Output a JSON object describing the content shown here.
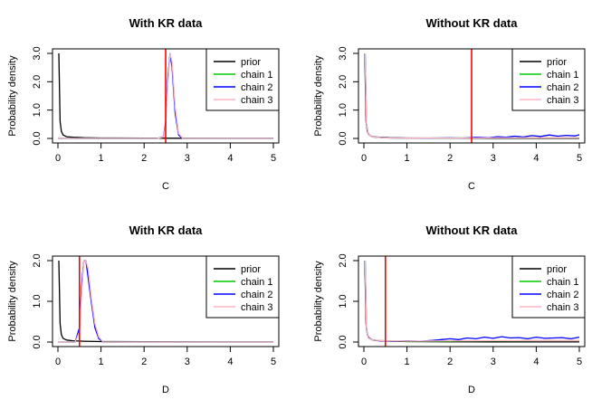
{
  "chart_data": [
    {
      "type": "line",
      "title": "With KR data",
      "xlabel": "C",
      "ylabel": "Probability density",
      "xlim": [
        0,
        5
      ],
      "ylim": [
        0,
        3.0
      ],
      "xticks": [
        "0",
        "1",
        "2",
        "3",
        "4",
        "5"
      ],
      "yticks": [
        "0.0",
        "1.0",
        "2.0",
        "3.0"
      ],
      "ytick_values": [
        0,
        1,
        2,
        3
      ],
      "legend": [
        "prior",
        "chain 1",
        "chain 2",
        "chain 3"
      ],
      "legend_position": "top-right",
      "reference_line_x": 2.5,
      "series": [
        {
          "name": "prior",
          "color": "#000000",
          "x": [
            0.02,
            0.05,
            0.08,
            0.12,
            0.2,
            0.35,
            0.6,
            1.0,
            2.0,
            3.0,
            4.0,
            5.0
          ],
          "y": [
            3.0,
            0.6,
            0.25,
            0.12,
            0.06,
            0.04,
            0.025,
            0.015,
            0.008,
            0.005,
            0.004,
            0.003
          ]
        },
        {
          "name": "chain 1",
          "color": "#00cc00",
          "x": [
            0,
            2.3,
            2.45,
            2.5,
            2.55,
            2.6,
            2.65,
            2.72,
            2.8,
            2.9,
            5
          ],
          "y": [
            0,
            0,
            0.05,
            0.5,
            2.0,
            3.0,
            2.6,
            1.0,
            0.15,
            0,
            0
          ]
        },
        {
          "name": "chain 2",
          "color": "#0000ff",
          "x": [
            0,
            2.3,
            2.45,
            2.5,
            2.55,
            2.6,
            2.65,
            2.72,
            2.8,
            2.9,
            5
          ],
          "y": [
            0,
            0,
            0.06,
            0.55,
            2.1,
            3.0,
            2.5,
            0.9,
            0.12,
            0,
            0
          ]
        },
        {
          "name": "chain 3",
          "color": "#ffb6c1",
          "x": [
            0,
            2.3,
            2.45,
            2.5,
            2.55,
            2.6,
            2.65,
            2.72,
            2.8,
            2.9,
            5
          ],
          "y": [
            0,
            0,
            0.05,
            0.45,
            1.9,
            3.0,
            2.7,
            1.1,
            0.18,
            0,
            0
          ]
        }
      ]
    },
    {
      "type": "line",
      "title": "Without KR data",
      "xlabel": "C",
      "ylabel": "Probability density",
      "xlim": [
        0,
        5
      ],
      "ylim": [
        0,
        3.0
      ],
      "xticks": [
        "0",
        "1",
        "2",
        "3",
        "4",
        "5"
      ],
      "yticks": [
        "0.0",
        "1.0",
        "2.0",
        "3.0"
      ],
      "ytick_values": [
        0,
        1,
        2,
        3
      ],
      "legend": [
        "prior",
        "chain 1",
        "chain 2",
        "chain 3"
      ],
      "legend_position": "top-right",
      "reference_line_x": 2.5,
      "series": [
        {
          "name": "prior",
          "color": "#000000",
          "x": [
            0.02,
            0.05,
            0.08,
            0.12,
            0.2,
            0.35,
            0.6,
            1.0,
            2.0,
            3.0,
            4.0,
            5.0
          ],
          "y": [
            3.0,
            0.6,
            0.25,
            0.12,
            0.06,
            0.04,
            0.025,
            0.015,
            0.008,
            0.005,
            0.004,
            0.003
          ]
        },
        {
          "name": "chain 1",
          "color": "#00cc00",
          "x": [
            0.03,
            0.06,
            0.1,
            0.2,
            0.5,
            1.0,
            1.5,
            2.0,
            2.5,
            3.0,
            3.5,
            4.0,
            4.5,
            5.0
          ],
          "y": [
            3.0,
            0.5,
            0.15,
            0.05,
            0.02,
            0.01,
            0.01,
            0.015,
            0.02,
            0.02,
            0.02,
            0.03,
            0.03,
            0.03
          ]
        },
        {
          "name": "chain 2",
          "color": "#0000ff",
          "x": [
            0.03,
            0.06,
            0.1,
            0.2,
            0.5,
            1.0,
            1.5,
            2.0,
            2.3,
            2.6,
            2.9,
            3.1,
            3.3,
            3.5,
            3.7,
            3.9,
            4.1,
            4.3,
            4.5,
            4.7,
            4.9,
            5.0
          ],
          "y": [
            3.0,
            0.5,
            0.15,
            0.05,
            0.02,
            0.01,
            0.01,
            0.02,
            0.01,
            0.04,
            0.03,
            0.06,
            0.04,
            0.08,
            0.05,
            0.1,
            0.07,
            0.12,
            0.08,
            0.11,
            0.09,
            0.13
          ]
        },
        {
          "name": "chain 3",
          "color": "#ffb6c1",
          "x": [
            0.03,
            0.06,
            0.1,
            0.2,
            0.5,
            1.0,
            1.5,
            2.0,
            2.5,
            3.0,
            3.5,
            4.0,
            4.5,
            5.0
          ],
          "y": [
            3.0,
            0.5,
            0.15,
            0.05,
            0.02,
            0.01,
            0.012,
            0.012,
            0.015,
            0.018,
            0.02,
            0.025,
            0.025,
            0.03
          ]
        }
      ]
    },
    {
      "type": "line",
      "title": "With KR data",
      "xlabel": "D",
      "ylabel": "Probability density",
      "xlim": [
        0,
        5
      ],
      "ylim": [
        0,
        2.0
      ],
      "xticks": [
        "0",
        "1",
        "2",
        "3",
        "4",
        "5"
      ],
      "yticks": [
        "0.0",
        "1.0",
        "2.0"
      ],
      "ytick_values": [
        0,
        1,
        2
      ],
      "legend": [
        "prior",
        "chain 1",
        "chain 2",
        "chain 3"
      ],
      "legend_position": "top-right",
      "reference_line_x": 0.5,
      "series": [
        {
          "name": "prior",
          "color": "#000000",
          "x": [
            0.02,
            0.05,
            0.08,
            0.12,
            0.2,
            0.35,
            0.6,
            1.0,
            2.0,
            3.0,
            4.0,
            5.0
          ],
          "y": [
            2.0,
            0.45,
            0.18,
            0.09,
            0.05,
            0.03,
            0.02,
            0.012,
            0.006,
            0.004,
            0.003,
            0.002
          ]
        },
        {
          "name": "chain 1",
          "color": "#00cc00",
          "x": [
            0,
            0.4,
            0.5,
            0.55,
            0.6,
            0.65,
            0.7,
            0.78,
            0.86,
            0.95,
            1.05,
            5
          ],
          "y": [
            0,
            0,
            0.3,
            1.3,
            2.0,
            2.0,
            1.7,
            1.0,
            0.4,
            0.1,
            0,
            0
          ]
        },
        {
          "name": "chain 2",
          "color": "#0000ff",
          "x": [
            0,
            0.4,
            0.5,
            0.55,
            0.6,
            0.65,
            0.7,
            0.78,
            0.86,
            0.95,
            1.05,
            5
          ],
          "y": [
            0,
            0,
            0.35,
            1.4,
            2.0,
            2.0,
            1.6,
            0.95,
            0.35,
            0.08,
            0,
            0
          ]
        },
        {
          "name": "chain 3",
          "color": "#ffb6c1",
          "x": [
            0,
            0.4,
            0.5,
            0.55,
            0.6,
            0.65,
            0.7,
            0.78,
            0.86,
            0.95,
            1.05,
            5
          ],
          "y": [
            0,
            0,
            0.25,
            1.2,
            2.0,
            2.0,
            1.8,
            1.05,
            0.45,
            0.12,
            0,
            0
          ]
        }
      ]
    },
    {
      "type": "line",
      "title": "Without KR data",
      "xlabel": "D",
      "ylabel": "Probability density",
      "xlim": [
        0,
        5
      ],
      "ylim": [
        0,
        2.0
      ],
      "xticks": [
        "0",
        "1",
        "2",
        "3",
        "4",
        "5"
      ],
      "yticks": [
        "0.0",
        "1.0",
        "2.0"
      ],
      "ytick_values": [
        0,
        1,
        2
      ],
      "legend": [
        "prior",
        "chain 1",
        "chain 2",
        "chain 3"
      ],
      "legend_position": "top-right",
      "reference_line_x": 0.5,
      "series": [
        {
          "name": "prior",
          "color": "#000000",
          "x": [
            0.02,
            0.05,
            0.08,
            0.12,
            0.2,
            0.35,
            0.6,
            1.0,
            2.0,
            3.0,
            4.0,
            5.0
          ],
          "y": [
            2.0,
            0.45,
            0.18,
            0.09,
            0.05,
            0.03,
            0.02,
            0.012,
            0.006,
            0.004,
            0.003,
            0.002
          ]
        },
        {
          "name": "chain 1",
          "color": "#00cc00",
          "x": [
            0.03,
            0.06,
            0.1,
            0.2,
            0.5,
            1.0,
            1.5,
            2.0,
            2.5,
            3.0,
            3.5,
            4.0,
            4.5,
            5.0
          ],
          "y": [
            2.0,
            0.3,
            0.1,
            0.05,
            0.03,
            0.02,
            0.02,
            0.02,
            0.03,
            0.03,
            0.03,
            0.04,
            0.04,
            0.04
          ]
        },
        {
          "name": "chain 2",
          "color": "#0000ff",
          "x": [
            0.03,
            0.06,
            0.1,
            0.2,
            0.4,
            0.7,
            1.0,
            1.3,
            1.6,
            1.8,
            2.0,
            2.2,
            2.4,
            2.6,
            2.8,
            3.0,
            3.2,
            3.4,
            3.6,
            3.8,
            4.0,
            4.2,
            4.4,
            4.6,
            4.8,
            5.0
          ],
          "y": [
            2.0,
            0.3,
            0.12,
            0.05,
            0.03,
            0.02,
            0.03,
            0.02,
            0.04,
            0.06,
            0.08,
            0.06,
            0.1,
            0.08,
            0.12,
            0.09,
            0.13,
            0.1,
            0.11,
            0.08,
            0.12,
            0.09,
            0.1,
            0.11,
            0.08,
            0.12
          ]
        },
        {
          "name": "chain 3",
          "color": "#ffb6c1",
          "x": [
            0.03,
            0.06,
            0.1,
            0.2,
            0.5,
            1.0,
            1.5,
            2.0,
            2.5,
            3.0,
            3.5,
            4.0,
            4.5,
            5.0
          ],
          "y": [
            2.0,
            0.3,
            0.1,
            0.05,
            0.03,
            0.025,
            0.025,
            0.03,
            0.03,
            0.035,
            0.035,
            0.04,
            0.04,
            0.04
          ]
        }
      ]
    }
  ]
}
